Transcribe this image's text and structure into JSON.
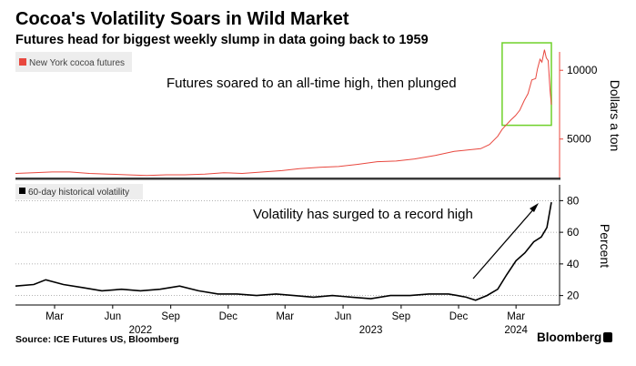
{
  "header": {
    "title": "Cocoa's Volatility Soars in Wild Market",
    "subtitle": "Futures head for biggest weekly slump in data going back to 1959"
  },
  "footer": {
    "source": "Source: ICE Futures US, Bloomberg",
    "brand": "Bloomberg"
  },
  "colors": {
    "futures_line": "#e8473e",
    "volatility_line": "#000000",
    "highlight_box": "#6fd12a",
    "axis_red": "#e8473e",
    "legend_bg": "#ededed"
  },
  "chart_data": [
    {
      "type": "line",
      "legend": {
        "label": "New York cocoa futures",
        "placement": "top-left"
      },
      "annotation": "Futures soared to an all-time high, then plunged",
      "ylabel": "Dollars a ton",
      "y_ticks": [
        5000,
        10000
      ],
      "y_tick_labels": [
        "5000",
        "10000"
      ],
      "ylim": [
        2000,
        12200
      ],
      "grid": false,
      "highlight": {
        "x_range": [
          "2024-02-08",
          "2024-04-26"
        ],
        "y_range": [
          6000,
          12000
        ]
      },
      "series": [
        {
          "name": "New York cocoa futures",
          "x": [
            "2021-12-29",
            "2022-01-26",
            "2022-02-25",
            "2022-03-25",
            "2022-04-25",
            "2022-05-25",
            "2022-06-24",
            "2022-07-25",
            "2022-08-25",
            "2022-09-23",
            "2022-10-25",
            "2022-11-24",
            "2022-12-23",
            "2023-01-25",
            "2023-02-24",
            "2023-03-24",
            "2023-04-25",
            "2023-05-25",
            "2023-06-23",
            "2023-07-25",
            "2023-08-24",
            "2023-09-22",
            "2023-10-25",
            "2023-11-24",
            "2023-12-15",
            "2024-01-05",
            "2024-01-19",
            "2024-02-01",
            "2024-02-08",
            "2024-02-14",
            "2024-02-22",
            "2024-02-29",
            "2024-03-07",
            "2024-03-14",
            "2024-03-20",
            "2024-03-26",
            "2024-04-01",
            "2024-04-04",
            "2024-04-08",
            "2024-04-11",
            "2024-04-15",
            "2024-04-18",
            "2024-04-21",
            "2024-04-24",
            "2024-04-26"
          ],
          "values": [
            2500,
            2550,
            2600,
            2600,
            2500,
            2450,
            2400,
            2350,
            2400,
            2400,
            2450,
            2550,
            2500,
            2600,
            2700,
            2850,
            2950,
            3000,
            3150,
            3350,
            3400,
            3550,
            3800,
            4100,
            4200,
            4300,
            4600,
            5200,
            5700,
            6000,
            6400,
            6700,
            7100,
            7800,
            8300,
            9300,
            9400,
            10100,
            10800,
            10600,
            11500,
            10900,
            10700,
            8500,
            7500
          ]
        }
      ]
    },
    {
      "type": "line",
      "legend": {
        "label": "60-day historical volatility",
        "placement": "top-left"
      },
      "annotation": "Volatility has surged to a record high",
      "ylabel": "Percent",
      "y_ticks": [
        20,
        40,
        60,
        80
      ],
      "y_tick_labels": [
        "20",
        "40",
        "60",
        "80"
      ],
      "ylim": [
        10,
        90
      ],
      "grid": true,
      "x_tick_labels": [
        "Mar",
        "Jun",
        "Sep",
        "Dec",
        "Mar",
        "Jun",
        "Sep",
        "Dec",
        "Mar"
      ],
      "x_ticks": [
        "2022-03-01",
        "2022-06-01",
        "2022-09-01",
        "2022-12-01",
        "2023-03-01",
        "2023-06-01",
        "2023-09-01",
        "2023-12-01",
        "2024-03-01"
      ],
      "year_labels": [
        {
          "label": "2022",
          "at": "2022-07-15"
        },
        {
          "label": "2023",
          "at": "2023-07-15"
        },
        {
          "label": "2024",
          "at": "2024-03-01"
        }
      ],
      "series": [
        {
          "name": "60-day historical volatility",
          "x": [
            "2021-12-29",
            "2022-01-27",
            "2022-02-15",
            "2022-03-15",
            "2022-04-15",
            "2022-05-15",
            "2022-06-15",
            "2022-07-15",
            "2022-08-15",
            "2022-09-15",
            "2022-10-15",
            "2022-11-15",
            "2022-12-15",
            "2023-01-15",
            "2023-02-15",
            "2023-03-15",
            "2023-04-15",
            "2023-05-15",
            "2023-06-15",
            "2023-07-15",
            "2023-08-15",
            "2023-09-15",
            "2023-10-15",
            "2023-11-15",
            "2023-11-29",
            "2023-12-13",
            "2023-12-28",
            "2024-01-15",
            "2024-02-01",
            "2024-02-15",
            "2024-03-01",
            "2024-03-15",
            "2024-03-29",
            "2024-04-10",
            "2024-04-19",
            "2024-04-26"
          ],
          "values": [
            26,
            27,
            30,
            27,
            25,
            23,
            24,
            23,
            24,
            26,
            23,
            21,
            21,
            20,
            21,
            20,
            19,
            20,
            19,
            18,
            20,
            20,
            21,
            21,
            20,
            19,
            17,
            20,
            24,
            33,
            42,
            47,
            54,
            57,
            63,
            79
          ]
        }
      ]
    }
  ]
}
